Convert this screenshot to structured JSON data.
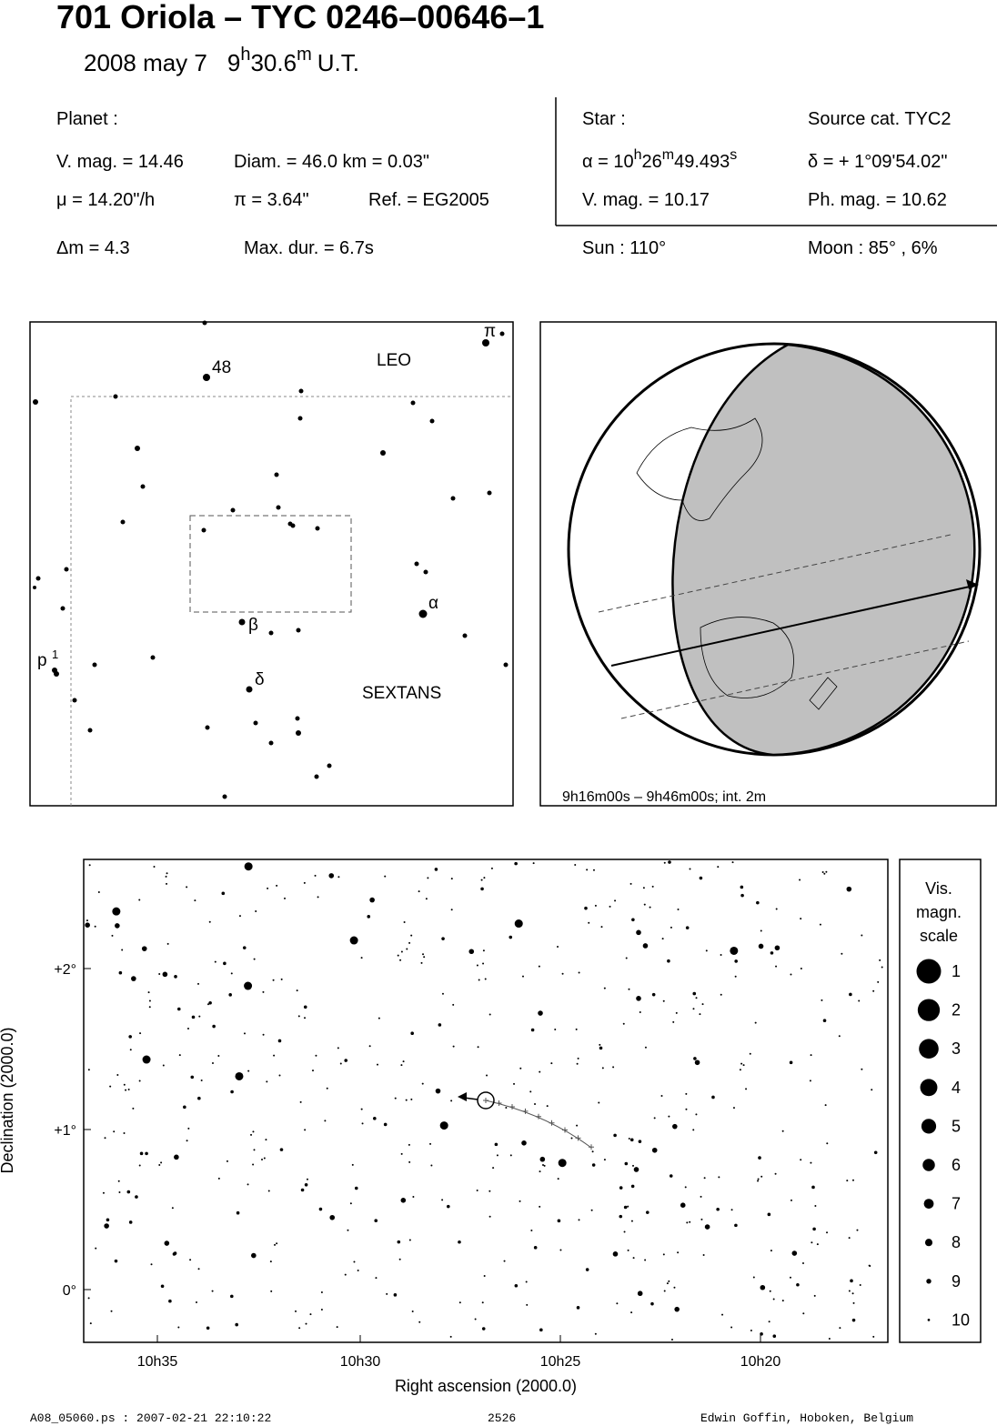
{
  "header": {
    "title": "701 Oriola  –  TYC 0246–00646–1",
    "epoch": {
      "date": "2008 may  7",
      "hours": "9",
      "h": "h",
      "minutes": "30.6",
      "m": "m",
      "ut": "U.T."
    }
  },
  "planet": {
    "label": "Planet :",
    "vmag": "V. mag. = 14.46",
    "diam": "Diam. = 46.0 km = 0.03\"",
    "mu": "μ =  14.20\"/h",
    "parallax": "π =  3.64\"",
    "ref": "Ref. = EG2005"
  },
  "star": {
    "label": "Star :",
    "source": "Source cat.  TYC2",
    "alpha": {
      "prefix": "α = 10",
      "h": "h",
      "min": "26",
      "m": "m",
      "sec": "49.493",
      "s": "s"
    },
    "delta": "δ = + 1°09'54.02\"",
    "vmag": "V. mag. = 10.17",
    "phmag": "Ph. mag. = 10.62"
  },
  "event": {
    "dmag": "Δm = 4.3",
    "maxdur": "Max. dur. = 6.7s",
    "sun": "Sun : 110°",
    "moon": "Moon :  85° ,  6%"
  },
  "finder": {
    "labels": {
      "n48": "48",
      "leo": "LEO",
      "pi": "π",
      "alpha": "α",
      "beta": "β",
      "delta": "δ",
      "p": "p",
      "p_index": "1",
      "sextans": "SEXTANS"
    }
  },
  "globe": {
    "caption": "9h16m00s –  9h46m00s; int.  2m"
  },
  "starchart": {
    "xticks": [
      "10h35",
      "10h30",
      "10h25",
      "10h20"
    ],
    "yticks": [
      "+2°",
      "+1°",
      "0°"
    ],
    "xlabel": "Right ascension (2000.0)",
    "ylabel": "Declination (2000.0)",
    "scale": {
      "title": [
        "Vis.",
        "magn.",
        "scale"
      ],
      "magnitudes": [
        1,
        2,
        3,
        4,
        5,
        6,
        7,
        8,
        9,
        10
      ]
    }
  },
  "footer": {
    "file": "A08_05060.ps : 2007-02-21 22:10:22",
    "number": "2526",
    "author": "Edwin Goffin, Hoboken, Belgium"
  }
}
